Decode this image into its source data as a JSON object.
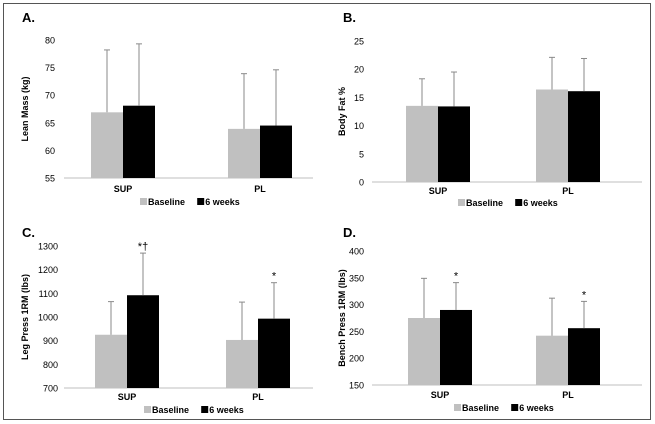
{
  "chart_data": [
    {
      "panel": "A.",
      "type": "bar",
      "ylabel": "Lean Mass (kg)",
      "ylim": [
        55,
        80
      ],
      "yticks": [
        55,
        60,
        65,
        70,
        75,
        80
      ],
      "categories": [
        "SUP",
        "PL"
      ],
      "series": [
        {
          "name": "Baseline",
          "color": "#c0c0c0",
          "values": [
            66.9,
            63.9
          ],
          "errors": [
            11.3,
            10.0
          ]
        },
        {
          "name": "6 weeks",
          "color": "#000000",
          "values": [
            68.1,
            64.5
          ],
          "errors": [
            11.2,
            10.1
          ]
        }
      ],
      "annotations": [],
      "legend": "bottom",
      "grid": false
    },
    {
      "panel": "B.",
      "type": "bar",
      "ylabel": "Body Fat %",
      "ylim": [
        0,
        25
      ],
      "yticks": [
        0,
        5,
        10,
        15,
        20,
        25
      ],
      "categories": [
        "SUP",
        "PL"
      ],
      "series": [
        {
          "name": "Baseline",
          "color": "#c0c0c0",
          "values": [
            13.5,
            16.4
          ],
          "errors": [
            4.8,
            5.7
          ]
        },
        {
          "name": "6 weeks",
          "color": "#000000",
          "values": [
            13.4,
            16.1
          ],
          "errors": [
            6.1,
            5.8
          ]
        }
      ],
      "annotations": [],
      "legend": "bottom",
      "grid": false
    },
    {
      "panel": "C.",
      "type": "bar",
      "ylabel": "Leg Press 1RM (lbs)",
      "ylim": [
        700,
        1300
      ],
      "yticks": [
        700,
        800,
        900,
        1000,
        1100,
        1200,
        1300
      ],
      "categories": [
        "SUP",
        "PL"
      ],
      "series": [
        {
          "name": "Baseline",
          "color": "#c0c0c0",
          "values": [
            925,
            903
          ],
          "errors": [
            140,
            160
          ]
        },
        {
          "name": "6 weeks",
          "color": "#000000",
          "values": [
            1092,
            993
          ],
          "errors": [
            178,
            152
          ]
        }
      ],
      "annotations": [
        {
          "category": "SUP",
          "series": "6 weeks",
          "text": "*†"
        },
        {
          "category": "PL",
          "series": "6 weeks",
          "text": "*"
        }
      ],
      "legend": "bottom",
      "grid": false
    },
    {
      "panel": "D.",
      "type": "bar",
      "ylabel": "Bench Press 1RM (lbs)",
      "ylim": [
        150,
        400
      ],
      "yticks": [
        150,
        200,
        250,
        300,
        350,
        400
      ],
      "categories": [
        "SUP",
        "PL"
      ],
      "series": [
        {
          "name": "Baseline",
          "color": "#c0c0c0",
          "values": [
            275,
            242
          ],
          "errors": [
            74,
            70
          ]
        },
        {
          "name": "6 weeks",
          "color": "#000000",
          "values": [
            290,
            256
          ],
          "errors": [
            51,
            50
          ]
        }
      ],
      "annotations": [
        {
          "category": "SUP",
          "series": "6 weeks",
          "text": "*"
        },
        {
          "category": "PL",
          "series": "6 weeks",
          "text": "*"
        }
      ],
      "legend": "bottom",
      "grid": false
    }
  ]
}
